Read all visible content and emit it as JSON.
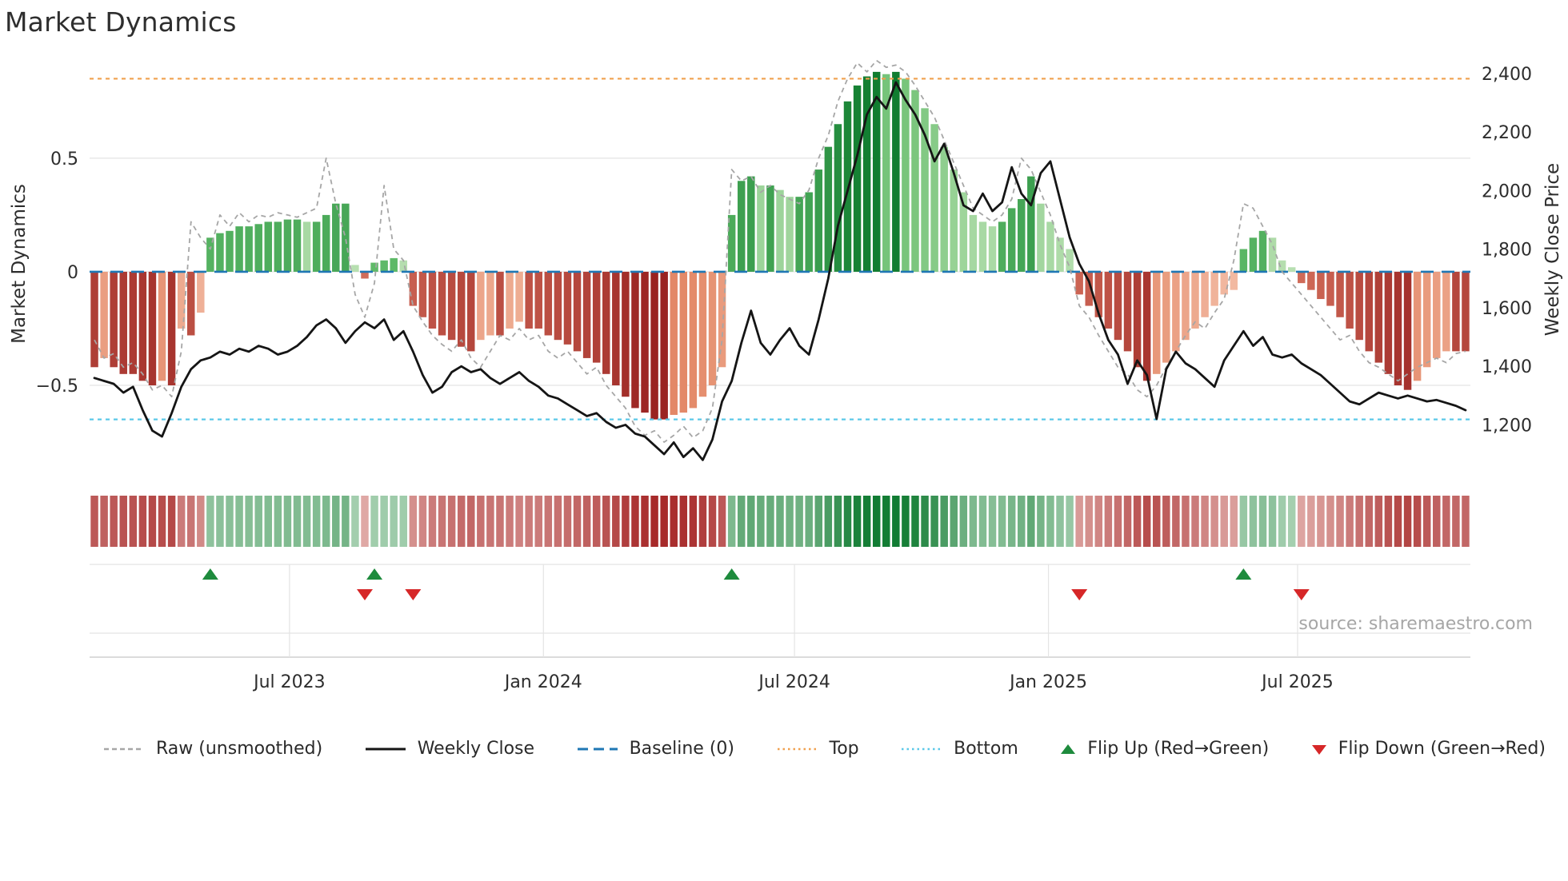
{
  "title": "Market Dynamics",
  "source": "source: sharemaestro.com",
  "chart_data": {
    "type": "combo-bar-line-dual-axis-with-heatmap-and-event-markers",
    "x_unit": "week",
    "axes": {
      "left_label": "Market Dynamics",
      "right_label": "Weekly Close Price",
      "left_range": [
        -0.88,
        0.95
      ],
      "right_range": [
        1040,
        2460
      ],
      "left_ticks": [
        {
          "value": 0.5,
          "label": "0.5"
        },
        {
          "value": 0,
          "label": "0"
        },
        {
          "value": -0.5,
          "label": "−0.5"
        }
      ],
      "right_ticks": [
        {
          "value": 2400,
          "label": "2,400"
        },
        {
          "value": 2200,
          "label": "2,200"
        },
        {
          "value": 2000,
          "label": "2,000"
        },
        {
          "value": 1800,
          "label": "1,800"
        },
        {
          "value": 1600,
          "label": "1,600"
        },
        {
          "value": 1400,
          "label": "1,400"
        },
        {
          "value": 1200,
          "label": "1,200"
        }
      ],
      "x_ticks": [
        {
          "week": 20.7,
          "label": "Jul 2023"
        },
        {
          "week": 47.0,
          "label": "Jan 2024"
        },
        {
          "week": 73.0,
          "label": "Jul 2024"
        },
        {
          "week": 99.3,
          "label": "Jan 2025"
        },
        {
          "week": 125.1,
          "label": "Jul 2025"
        }
      ],
      "grid": "horizontal-main-plot, full-grid-marker-panel"
    },
    "baseline": 0,
    "top_threshold": 0.85,
    "bottom_threshold": -0.65,
    "oscillator": [
      -0.42,
      -0.38,
      -0.42,
      -0.45,
      -0.45,
      -0.48,
      -0.5,
      -0.48,
      -0.5,
      -0.25,
      -0.28,
      -0.18,
      0.15,
      0.17,
      0.18,
      0.2,
      0.2,
      0.21,
      0.22,
      0.22,
      0.23,
      0.23,
      0.22,
      0.22,
      0.25,
      0.3,
      0.3,
      0.03,
      -0.03,
      0.04,
      0.05,
      0.06,
      0.05,
      -0.15,
      -0.2,
      -0.25,
      -0.28,
      -0.3,
      -0.33,
      -0.35,
      -0.3,
      -0.28,
      -0.28,
      -0.25,
      -0.22,
      -0.25,
      -0.25,
      -0.28,
      -0.3,
      -0.32,
      -0.35,
      -0.38,
      -0.4,
      -0.45,
      -0.5,
      -0.55,
      -0.6,
      -0.62,
      -0.65,
      -0.65,
      -0.63,
      -0.62,
      -0.6,
      -0.55,
      -0.5,
      -0.42,
      0.25,
      0.4,
      0.42,
      0.38,
      0.38,
      0.36,
      0.33,
      0.33,
      0.35,
      0.45,
      0.55,
      0.65,
      0.75,
      0.82,
      0.86,
      0.88,
      0.87,
      0.88,
      0.85,
      0.8,
      0.72,
      0.65,
      0.55,
      0.45,
      0.35,
      0.25,
      0.22,
      0.2,
      0.22,
      0.28,
      0.32,
      0.42,
      0.3,
      0.22,
      0.15,
      0.1,
      -0.1,
      -0.15,
      -0.2,
      -0.25,
      -0.3,
      -0.35,
      -0.42,
      -0.48,
      -0.45,
      -0.4,
      -0.35,
      -0.3,
      -0.25,
      -0.2,
      -0.15,
      -0.1,
      -0.08,
      0.1,
      0.15,
      0.18,
      0.15,
      0.05,
      0.02,
      -0.05,
      -0.08,
      -0.12,
      -0.15,
      -0.2,
      -0.25,
      -0.3,
      -0.35,
      -0.4,
      -0.45,
      -0.5,
      -0.52,
      -0.48,
      -0.42,
      -0.38,
      -0.35,
      -0.35,
      -0.35
    ],
    "raw": [
      -0.3,
      -0.38,
      -0.36,
      -0.42,
      -0.4,
      -0.45,
      -0.52,
      -0.5,
      -0.55,
      -0.35,
      0.22,
      0.15,
      0.1,
      0.25,
      0.2,
      0.26,
      0.22,
      0.25,
      0.24,
      0.26,
      0.25,
      0.24,
      0.26,
      0.28,
      0.5,
      0.3,
      0.15,
      -0.1,
      -0.2,
      -0.05,
      0.38,
      0.1,
      0.05,
      -0.15,
      -0.22,
      -0.28,
      -0.32,
      -0.35,
      -0.3,
      -0.38,
      -0.42,
      -0.35,
      -0.28,
      -0.3,
      -0.25,
      -0.3,
      -0.28,
      -0.35,
      -0.38,
      -0.35,
      -0.4,
      -0.45,
      -0.42,
      -0.5,
      -0.55,
      -0.6,
      -0.68,
      -0.72,
      -0.7,
      -0.75,
      -0.72,
      -0.68,
      -0.73,
      -0.7,
      -0.6,
      -0.3,
      0.45,
      0.4,
      0.42,
      0.35,
      0.38,
      0.34,
      0.32,
      0.3,
      0.36,
      0.5,
      0.6,
      0.75,
      0.85,
      0.92,
      0.88,
      0.93,
      0.9,
      0.91,
      0.88,
      0.82,
      0.75,
      0.68,
      0.58,
      0.48,
      0.38,
      0.28,
      0.25,
      0.22,
      0.25,
      0.32,
      0.5,
      0.45,
      0.35,
      0.25,
      0.12,
      0.02,
      -0.15,
      -0.2,
      -0.28,
      -0.35,
      -0.42,
      -0.45,
      -0.52,
      -0.55,
      -0.5,
      -0.42,
      -0.35,
      -0.28,
      -0.22,
      -0.25,
      -0.18,
      -0.12,
      0.05,
      0.3,
      0.28,
      0.2,
      0.12,
      0.0,
      -0.05,
      -0.1,
      -0.15,
      -0.2,
      -0.25,
      -0.3,
      -0.28,
      -0.35,
      -0.4,
      -0.42,
      -0.45,
      -0.48,
      -0.45,
      -0.42,
      -0.4,
      -0.38,
      -0.4,
      -0.36,
      -0.35
    ],
    "close": [
      1360,
      1350,
      1340,
      1310,
      1330,
      1250,
      1180,
      1160,
      1240,
      1330,
      1390,
      1420,
      1430,
      1450,
      1440,
      1460,
      1450,
      1470,
      1460,
      1440,
      1450,
      1470,
      1500,
      1540,
      1560,
      1530,
      1480,
      1520,
      1550,
      1530,
      1560,
      1490,
      1520,
      1450,
      1370,
      1310,
      1330,
      1380,
      1400,
      1380,
      1390,
      1360,
      1340,
      1360,
      1380,
      1350,
      1330,
      1300,
      1290,
      1270,
      1250,
      1230,
      1240,
      1210,
      1190,
      1200,
      1170,
      1160,
      1130,
      1100,
      1140,
      1090,
      1120,
      1080,
      1150,
      1280,
      1350,
      1480,
      1590,
      1480,
      1440,
      1490,
      1530,
      1470,
      1440,
      1560,
      1700,
      1880,
      2000,
      2120,
      2260,
      2320,
      2280,
      2370,
      2310,
      2260,
      2190,
      2100,
      2160,
      2060,
      1950,
      1930,
      1990,
      1930,
      1960,
      2080,
      1990,
      1950,
      2060,
      2100,
      1970,
      1840,
      1750,
      1690,
      1580,
      1490,
      1440,
      1340,
      1420,
      1370,
      1220,
      1390,
      1450,
      1410,
      1390,
      1360,
      1330,
      1420,
      1470,
      1520,
      1470,
      1500,
      1440,
      1430,
      1440,
      1410,
      1390,
      1370,
      1340,
      1310,
      1280,
      1270,
      1290,
      1310,
      1300,
      1290,
      1300,
      1290,
      1280,
      1285,
      1275,
      1265,
      1250
    ],
    "flip_up_weeks": [
      12,
      29,
      66,
      119
    ],
    "flip_down_weeks": [
      28,
      33,
      102,
      125
    ]
  },
  "legend": {
    "items": [
      {
        "label": "Raw (unsmoothed)",
        "type": "line",
        "style": "dashed",
        "color": "#a6a6a6"
      },
      {
        "label": "Weekly Close",
        "type": "line",
        "style": "solid",
        "color": "#151515"
      },
      {
        "label": "Baseline (0)",
        "type": "line",
        "style": "dashed-long",
        "color": "#1f77b4"
      },
      {
        "label": "Top",
        "type": "line",
        "style": "dotted",
        "color": "#f0a04e"
      },
      {
        "label": "Bottom",
        "type": "line",
        "style": "dotted",
        "color": "#5bc8e8"
      },
      {
        "label": "Flip Up (Red→Green)",
        "type": "triangle-up",
        "color": "#1e8b3d"
      },
      {
        "label": "Flip Down (Green→Red)",
        "type": "triangle-down",
        "color": "#d62728"
      }
    ]
  },
  "colors": {
    "bar_green_dark": "#0f7c2f",
    "bar_green_base": "#63bd6b",
    "bar_green_light_lo": "#b9e0b2",
    "bar_green_light_hi": "#74c378",
    "bar_red_dark": "#951d1d",
    "bar_red_base": "#d4705c",
    "bar_red_light_lo": "#f4c0aa",
    "bar_red_light_hi": "#e1825f",
    "heat_green_lo": "#eaf6ea",
    "heat_green_hi": "#0e7a30",
    "heat_red_lo": "#fcebe7",
    "heat_red_hi": "#a32020",
    "raw_line": "#a6a6a6",
    "close_line": "#151515",
    "baseline_line": "#1f77b4",
    "top_line": "#f0a04e",
    "bottom_line": "#5bc8e8",
    "flip_up": "#1e8b3d",
    "flip_down": "#d62728",
    "grid": "#e4e4e4",
    "axis_line": "#cfcfcf",
    "tick_text": "#2d2d2d",
    "muted_text": "#a6a6a6"
  }
}
